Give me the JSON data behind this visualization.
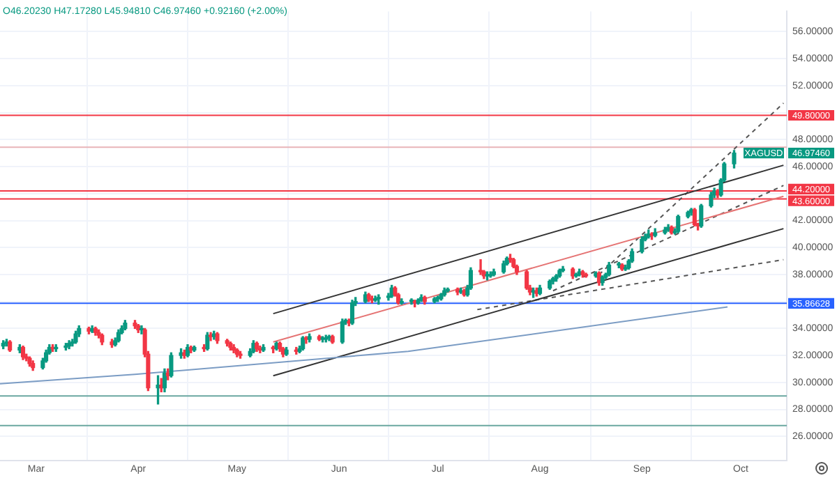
{
  "chart_data": {
    "type": "candlestick",
    "xlim": [
      "--02-18",
      "--10-15"
    ],
    "xticks": [
      {
        "value": "--03-01",
        "label": "Mar"
      },
      {
        "value": "--04-01",
        "label": "Apr"
      },
      {
        "value": "--05-01",
        "label": "May"
      },
      {
        "value": "--06-01",
        "label": "Jun"
      },
      {
        "value": "--07-01",
        "label": "Jul"
      },
      {
        "value": "--08-01",
        "label": "Aug"
      },
      {
        "value": "--09-01",
        "label": "Sep"
      },
      {
        "value": "--10-01",
        "label": "Oct"
      }
    ],
    "ylim": [
      24.2,
      57.5
    ],
    "yticks": [
      {
        "value": 26,
        "label": "26.00000"
      },
      {
        "value": 28,
        "label": "28.00000"
      },
      {
        "value": 30,
        "label": "30.00000"
      },
      {
        "value": 32,
        "label": "32.00000"
      },
      {
        "value": 34,
        "label": "34.00000"
      },
      {
        "value": 36,
        "label": null
      },
      {
        "value": 38,
        "label": "38.00000"
      },
      {
        "value": 40,
        "label": "40.00000"
      },
      {
        "value": 42,
        "label": "42.00000"
      },
      {
        "value": 44,
        "label": null
      },
      {
        "value": 46,
        "label": "46.00000"
      },
      {
        "value": 48,
        "label": "48.00000"
      },
      {
        "value": 50,
        "label": null
      },
      {
        "value": 52,
        "label": "52.00000"
      },
      {
        "value": 54,
        "label": "54.00000"
      },
      {
        "value": 56,
        "label": "56.00000"
      }
    ],
    "grid": true,
    "series": [
      {
        "type": "line",
        "x": [
          "--02-18",
          "--03-31",
          "--06-22",
          "--09-27"
        ],
        "values": [
          29.9,
          30.6,
          32.3,
          35.6
        ],
        "color": "#7b9cc4",
        "line_style": "solid"
      },
      {
        "type": "line",
        "x": [
          "--05-12",
          "--10-14"
        ],
        "values": [
          35.1,
          46.1
        ],
        "color": "#333333",
        "line_style": "solid"
      },
      {
        "type": "line",
        "x": [
          "--05-12",
          "--10-14"
        ],
        "values": [
          30.5,
          41.4
        ],
        "color": "#333333",
        "line_style": "solid"
      },
      {
        "type": "line",
        "x": [
          "--05-12",
          "--10-14"
        ],
        "values": [
          33.0,
          43.8
        ],
        "color": "#e57373",
        "line_style": "solid"
      },
      {
        "type": "line",
        "x": [
          "--07-13",
          "--10-14"
        ],
        "values": [
          35.4,
          39.1
        ],
        "color": "#555555",
        "line_style": "dashed"
      },
      {
        "type": "line",
        "x": [
          "--08-05",
          "--10-14"
        ],
        "values": [
          36.8,
          44.6
        ],
        "color": "#555555",
        "line_style": "dashed"
      },
      {
        "type": "line",
        "x": [
          "--08-19",
          "--10-14"
        ],
        "values": [
          38.0,
          50.7
        ],
        "color": "#555555",
        "line_style": "dashed"
      },
      {
        "type": "candlestick",
        "x": [
          "--02-19",
          "--02-20",
          "--02-21",
          "--02-24",
          "--02-25",
          "--02-26",
          "--02-27",
          "--02-28",
          "--03-03",
          "--03-04",
          "--03-05",
          "--03-06",
          "--03-07",
          "--03-10",
          "--03-11",
          "--03-12",
          "--03-13",
          "--03-14",
          "--03-17",
          "--03-18",
          "--03-19",
          "--03-20",
          "--03-21",
          "--03-24",
          "--03-25",
          "--03-26",
          "--03-27",
          "--03-28",
          "--03-31",
          "--04-01",
          "--04-02",
          "--04-03",
          "--04-04",
          "--04-07",
          "--04-08",
          "--04-09",
          "--04-10",
          "--04-11",
          "--04-14",
          "--04-15",
          "--04-16",
          "--04-17",
          "--04-18",
          "--04-21",
          "--04-22",
          "--04-23",
          "--04-24",
          "--04-25",
          "--04-28",
          "--04-29",
          "--04-30",
          "--05-01",
          "--05-02",
          "--05-05",
          "--05-06",
          "--05-07",
          "--05-08",
          "--05-09",
          "--05-12",
          "--05-13",
          "--05-14",
          "--05-15",
          "--05-16",
          "--05-19",
          "--05-20",
          "--05-21",
          "--05-22",
          "--05-23",
          "--05-26",
          "--05-27",
          "--05-28",
          "--05-29",
          "--05-30",
          "--06-02",
          "--06-03",
          "--06-04",
          "--06-05",
          "--06-06",
          "--06-09",
          "--06-10",
          "--06-11",
          "--06-12",
          "--06-13",
          "--06-16",
          "--06-17",
          "--06-18",
          "--06-19",
          "--06-20",
          "--06-23",
          "--06-24",
          "--06-25",
          "--06-26",
          "--06-27",
          "--06-30",
          "--07-01",
          "--07-02",
          "--07-03",
          "--07-04",
          "--07-07",
          "--07-08",
          "--07-09",
          "--07-10",
          "--07-11",
          "--07-14",
          "--07-15",
          "--07-16",
          "--07-17",
          "--07-18",
          "--07-21",
          "--07-22",
          "--07-23",
          "--07-24",
          "--07-25",
          "--07-28",
          "--07-29",
          "--07-30",
          "--07-31",
          "--08-01",
          "--08-04",
          "--08-05",
          "--08-06",
          "--08-07",
          "--08-08",
          "--08-11",
          "--08-12",
          "--08-13",
          "--08-14",
          "--08-15",
          "--08-18",
          "--08-19",
          "--08-20",
          "--08-21",
          "--08-22",
          "--08-25",
          "--08-26",
          "--08-27",
          "--08-28",
          "--08-29",
          "--09-01",
          "--09-02",
          "--09-03",
          "--09-04",
          "--09-05",
          "--09-08",
          "--09-09",
          "--09-10",
          "--09-11",
          "--09-12",
          "--09-15",
          "--09-16",
          "--09-17",
          "--09-18",
          "--09-19",
          "--09-22",
          "--09-23",
          "--09-24",
          "--09-25",
          "--09-26",
          "--09-29"
        ],
        "ohlc": [
          [
            32.7,
            33.1,
            32.5,
            32.9
          ],
          [
            32.9,
            33.2,
            32.7,
            33.0
          ],
          [
            33.0,
            33.1,
            32.3,
            32.4
          ],
          [
            32.4,
            32.8,
            32.2,
            32.6
          ],
          [
            32.6,
            32.7,
            31.7,
            31.9
          ],
          [
            31.9,
            32.1,
            31.6,
            31.8
          ],
          [
            31.8,
            31.9,
            31.2,
            31.4
          ],
          [
            31.4,
            31.6,
            30.9,
            31.1
          ],
          [
            31.1,
            31.8,
            31.0,
            31.6
          ],
          [
            31.6,
            32.4,
            31.5,
            32.2
          ],
          [
            32.2,
            32.8,
            32.1,
            32.6
          ],
          [
            32.6,
            32.8,
            32.3,
            32.5
          ],
          [
            32.5,
            32.8,
            32.3,
            32.6
          ],
          [
            32.6,
            32.9,
            32.4,
            32.7
          ],
          [
            32.7,
            33.1,
            32.5,
            32.9
          ],
          [
            32.9,
            33.2,
            32.7,
            33.0
          ],
          [
            33.0,
            33.8,
            32.9,
            33.6
          ],
          [
            33.6,
            34.2,
            33.4,
            34.0
          ],
          [
            34.0,
            34.1,
            33.6,
            33.8
          ],
          [
            33.8,
            34.2,
            33.7,
            34.0
          ],
          [
            34.0,
            34.1,
            33.5,
            33.7
          ],
          [
            33.7,
            33.9,
            33.3,
            33.5
          ],
          [
            33.5,
            33.6,
            32.8,
            33.0
          ],
          [
            33.0,
            33.2,
            32.6,
            32.8
          ],
          [
            32.8,
            33.3,
            32.7,
            33.1
          ],
          [
            33.1,
            33.9,
            33.0,
            33.7
          ],
          [
            33.7,
            34.2,
            33.6,
            34.0
          ],
          [
            34.0,
            34.6,
            33.9,
            34.4
          ],
          [
            34.4,
            34.6,
            34.0,
            34.2
          ],
          [
            34.2,
            34.3,
            33.7,
            33.9
          ],
          [
            33.9,
            34.2,
            33.6,
            33.9
          ],
          [
            33.9,
            34.0,
            31.9,
            32.1
          ],
          [
            32.1,
            32.3,
            29.4,
            29.6
          ],
          [
            29.6,
            30.5,
            28.4,
            29.8
          ],
          [
            29.8,
            30.3,
            29.3,
            29.6
          ],
          [
            29.6,
            31.0,
            29.3,
            30.7
          ],
          [
            30.7,
            31.0,
            30.2,
            30.5
          ],
          [
            30.5,
            32.2,
            30.4,
            32.0
          ],
          [
            32.0,
            32.5,
            31.8,
            32.2
          ],
          [
            32.2,
            32.4,
            31.8,
            32.0
          ],
          [
            32.0,
            32.8,
            31.9,
            32.6
          ],
          [
            32.6,
            32.7,
            32.2,
            32.4
          ],
          [
            32.4,
            32.7,
            32.3,
            32.6
          ],
          [
            32.6,
            32.8,
            32.3,
            32.5
          ],
          [
            32.5,
            33.7,
            32.4,
            33.5
          ],
          [
            33.5,
            33.7,
            33.1,
            33.4
          ],
          [
            33.4,
            33.8,
            33.2,
            33.6
          ],
          [
            33.6,
            33.7,
            32.9,
            33.1
          ],
          [
            33.1,
            33.2,
            32.7,
            32.9
          ],
          [
            32.9,
            33.0,
            32.4,
            32.6
          ],
          [
            32.6,
            32.8,
            32.2,
            32.4
          ],
          [
            32.4,
            32.5,
            31.9,
            32.1
          ],
          [
            32.1,
            32.3,
            31.8,
            32.0
          ],
          [
            32.0,
            32.5,
            31.9,
            32.3
          ],
          [
            32.3,
            33.1,
            32.2,
            32.9
          ],
          [
            32.9,
            33.0,
            32.3,
            32.5
          ],
          [
            32.5,
            32.7,
            32.2,
            32.4
          ],
          [
            32.4,
            32.8,
            32.3,
            32.6
          ],
          [
            32.6,
            32.7,
            32.2,
            32.5
          ],
          [
            32.5,
            33.0,
            32.4,
            32.9
          ],
          [
            32.9,
            33.0,
            32.3,
            32.5
          ],
          [
            32.5,
            32.6,
            31.9,
            32.1
          ],
          [
            32.1,
            32.6,
            32.0,
            32.4
          ],
          [
            32.4,
            32.6,
            32.1,
            32.3
          ],
          [
            32.3,
            32.7,
            32.2,
            32.5
          ],
          [
            32.5,
            33.4,
            32.4,
            33.3
          ],
          [
            33.3,
            33.4,
            32.9,
            33.2
          ],
          [
            33.2,
            33.6,
            33.0,
            33.4
          ],
          [
            33.4,
            33.5,
            33.1,
            33.2
          ],
          [
            33.2,
            33.4,
            33.0,
            33.2
          ],
          [
            33.2,
            33.5,
            33.0,
            33.3
          ],
          [
            33.3,
            33.5,
            33.1,
            33.4
          ],
          [
            33.4,
            33.5,
            32.9,
            33.0
          ],
          [
            33.0,
            34.7,
            32.9,
            34.5
          ],
          [
            34.5,
            34.7,
            34.3,
            34.5
          ],
          [
            34.5,
            34.7,
            34.2,
            34.4
          ],
          [
            34.4,
            36.1,
            34.3,
            35.9
          ],
          [
            35.9,
            36.3,
            35.7,
            36.0
          ],
          [
            36.0,
            36.7,
            35.9,
            36.5
          ],
          [
            36.5,
            36.6,
            36.0,
            36.2
          ],
          [
            36.2,
            36.4,
            35.9,
            36.1
          ],
          [
            36.1,
            36.4,
            36.0,
            36.2
          ],
          [
            36.2,
            36.5,
            35.8,
            36.3
          ],
          [
            36.3,
            36.6,
            36.1,
            36.4
          ],
          [
            36.4,
            37.2,
            36.3,
            37.0
          ],
          [
            37.0,
            37.1,
            36.4,
            36.5
          ],
          [
            36.5,
            36.6,
            35.8,
            35.9
          ],
          [
            35.9,
            36.2,
            35.8,
            36.0
          ],
          [
            36.0,
            36.2,
            35.8,
            36.0
          ],
          [
            36.0,
            36.1,
            35.6,
            35.9
          ],
          [
            35.9,
            36.2,
            35.8,
            36.1
          ],
          [
            36.1,
            36.5,
            36.0,
            36.3
          ],
          [
            36.3,
            36.4,
            35.8,
            36.0
          ],
          [
            36.0,
            36.3,
            35.9,
            36.2
          ],
          [
            36.2,
            36.4,
            36.0,
            36.2
          ],
          [
            36.2,
            36.6,
            36.1,
            36.5
          ],
          [
            36.5,
            37.0,
            36.4,
            36.8
          ],
          [
            36.8,
            37.0,
            36.7,
            36.9
          ],
          [
            36.9,
            37.0,
            36.5,
            36.7
          ],
          [
            36.7,
            37.0,
            36.6,
            36.8
          ],
          [
            36.8,
            36.9,
            36.4,
            36.5
          ],
          [
            36.5,
            37.2,
            36.4,
            37.0
          ],
          [
            37.0,
            38.5,
            36.9,
            38.3
          ],
          [
            38.3,
            39.1,
            38.0,
            38.2
          ],
          [
            38.2,
            38.3,
            37.7,
            37.9
          ],
          [
            37.9,
            38.2,
            37.6,
            37.9
          ],
          [
            37.9,
            38.2,
            37.8,
            38.0
          ],
          [
            38.0,
            38.4,
            37.9,
            38.2
          ],
          [
            38.2,
            39.0,
            38.1,
            38.8
          ],
          [
            38.8,
            39.3,
            38.7,
            39.2
          ],
          [
            39.2,
            39.5,
            38.9,
            39.1
          ],
          [
            39.1,
            39.2,
            38.5,
            38.6
          ],
          [
            38.6,
            38.7,
            38.0,
            38.2
          ],
          [
            38.2,
            38.3,
            36.9,
            37.0
          ],
          [
            37.0,
            37.2,
            36.5,
            36.7
          ],
          [
            36.7,
            37.0,
            36.3,
            36.8
          ],
          [
            36.8,
            37.0,
            36.4,
            36.6
          ],
          [
            36.6,
            37.2,
            36.5,
            37.0
          ],
          [
            37.0,
            37.6,
            36.9,
            37.5
          ],
          [
            37.5,
            37.8,
            37.3,
            37.7
          ],
          [
            37.7,
            38.0,
            37.5,
            37.9
          ],
          [
            37.9,
            38.4,
            37.8,
            38.3
          ],
          [
            38.3,
            38.6,
            38.2,
            38.4
          ],
          [
            38.4,
            38.5,
            37.7,
            37.9
          ],
          [
            37.9,
            38.1,
            37.8,
            38.0
          ],
          [
            38.0,
            38.4,
            37.9,
            38.2
          ],
          [
            38.2,
            38.3,
            37.8,
            38.0
          ],
          [
            38.0,
            38.1,
            37.8,
            37.9
          ],
          [
            37.9,
            38.2,
            37.8,
            38.1
          ],
          [
            38.1,
            38.2,
            37.2,
            37.4
          ],
          [
            37.4,
            37.9,
            37.2,
            37.8
          ],
          [
            37.8,
            38.1,
            37.7,
            38.0
          ],
          [
            38.0,
            38.9,
            37.9,
            38.7
          ],
          [
            38.7,
            38.9,
            38.5,
            38.7
          ],
          [
            38.7,
            38.8,
            38.3,
            38.4
          ],
          [
            38.4,
            38.7,
            38.3,
            38.5
          ],
          [
            38.5,
            39.1,
            38.4,
            39.0
          ],
          [
            39.0,
            39.9,
            38.9,
            39.7
          ],
          [
            39.7,
            40.8,
            39.6,
            40.6
          ],
          [
            40.6,
            41.0,
            40.5,
            40.8
          ],
          [
            40.8,
            41.3,
            40.7,
            41.0
          ],
          [
            41.0,
            41.1,
            40.6,
            40.9
          ],
          [
            40.9,
            41.4,
            40.8,
            41.1
          ],
          [
            41.1,
            41.5,
            41.0,
            41.3
          ],
          [
            41.3,
            41.7,
            41.2,
            41.5
          ],
          [
            41.5,
            41.6,
            41.0,
            41.1
          ],
          [
            41.1,
            41.4,
            41.0,
            41.2
          ],
          [
            41.2,
            42.4,
            41.1,
            42.3
          ],
          [
            42.3,
            42.7,
            42.2,
            42.6
          ],
          [
            42.6,
            42.9,
            42.4,
            42.8
          ],
          [
            42.8,
            42.9,
            41.6,
            41.7
          ],
          [
            41.7,
            41.8,
            41.3,
            41.6
          ],
          [
            41.6,
            43.2,
            41.5,
            43.1
          ],
          [
            43.1,
            44.1,
            43.0,
            43.9
          ],
          [
            43.9,
            44.4,
            43.7,
            44.2
          ],
          [
            44.2,
            44.3,
            43.7,
            43.9
          ],
          [
            43.9,
            45.1,
            43.8,
            45.0
          ],
          [
            45.0,
            46.3,
            44.9,
            46.2
          ],
          [
            46.2,
            47.2,
            45.9,
            47.0
          ]
        ],
        "colors": [
          "#089981",
          "#089981",
          "#f23645",
          "#089981",
          "#f23645",
          "#f23645",
          "#f23645",
          "#f23645",
          "#089981",
          "#089981",
          "#089981",
          "#f23645",
          "#089981",
          "#089981",
          "#089981",
          "#089981",
          "#089981",
          "#089981",
          "#f23645",
          "#089981",
          "#f23645",
          "#f23645",
          "#f23645",
          "#f23645",
          "#089981",
          "#089981",
          "#089981",
          "#089981",
          "#f23645",
          "#f23645",
          "#089981",
          "#f23645",
          "#f23645",
          "#089981",
          "#f23645",
          "#089981",
          "#f23645",
          "#089981",
          "#089981",
          "#f23645",
          "#089981",
          "#f23645",
          "#089981",
          "#f23645",
          "#089981",
          "#f23645",
          "#089981",
          "#f23645",
          "#f23645",
          "#f23645",
          "#f23645",
          "#f23645",
          "#f23645",
          "#089981",
          "#089981",
          "#f23645",
          "#f23645",
          "#089981",
          "#f23645",
          "#089981",
          "#f23645",
          "#f23645",
          "#089981",
          "#f23645",
          "#089981",
          "#089981",
          "#f23645",
          "#089981",
          "#f23645",
          "#089981",
          "#089981",
          "#089981",
          "#f23645",
          "#089981",
          "#089981",
          "#f23645",
          "#089981",
          "#089981",
          "#089981",
          "#f23645",
          "#f23645",
          "#089981",
          "#089981",
          "#089981",
          "#089981",
          "#f23645",
          "#f23645",
          "#089981",
          "#089981",
          "#f23645",
          "#089981",
          "#089981",
          "#f23645",
          "#089981",
          "#089981",
          "#089981",
          "#089981",
          "#089981",
          "#f23645",
          "#089981",
          "#f23645",
          "#089981",
          "#089981",
          "#f23645",
          "#f23645",
          "#089981",
          "#089981",
          "#089981",
          "#089981",
          "#089981",
          "#f23645",
          "#f23645",
          "#f23645",
          "#f23645",
          "#f23645",
          "#089981",
          "#f23645",
          "#089981",
          "#089981",
          "#089981",
          "#089981",
          "#089981",
          "#089981",
          "#f23645",
          "#089981",
          "#089981",
          "#f23645",
          "#f23645",
          "#089981",
          "#f23645",
          "#089981",
          "#089981",
          "#089981",
          "#089981",
          "#f23645",
          "#089981",
          "#089981",
          "#089981",
          "#089981",
          "#089981",
          "#089981",
          "#f23645",
          "#089981",
          "#089981",
          "#089981",
          "#f23645",
          "#089981",
          "#089981",
          "#089981",
          "#089981",
          "#f23645",
          "#f23645",
          "#089981",
          "#089981",
          "#089981",
          "#f23645",
          "#089981",
          "#089981",
          "#089981"
        ]
      }
    ],
    "ref_lines": [
      {
        "axis": "y",
        "value": 49.8,
        "label": "49.80000",
        "color": "#f23645"
      },
      {
        "axis": "y",
        "value": 47.44,
        "color": "#e8b4b8"
      },
      {
        "axis": "y",
        "value": 44.2,
        "label": "44.20000",
        "color": "#f23645"
      },
      {
        "axis": "y",
        "value": 43.6,
        "label": "43.60000",
        "color": "#f23645"
      },
      {
        "axis": "y",
        "value": 35.86628,
        "label": "35.86628",
        "color": "#2962ff"
      },
      {
        "axis": "y",
        "value": 29.0,
        "color": "#6aa7a0"
      },
      {
        "axis": "y",
        "value": 26.8,
        "color": "#6aa7a0"
      }
    ],
    "annotations": [
      "O46.20230 H47.17280 L45.94810 C46.97460 +0.92160 (+2.00%)",
      "XAGUSD",
      "46.97460"
    ]
  }
}
